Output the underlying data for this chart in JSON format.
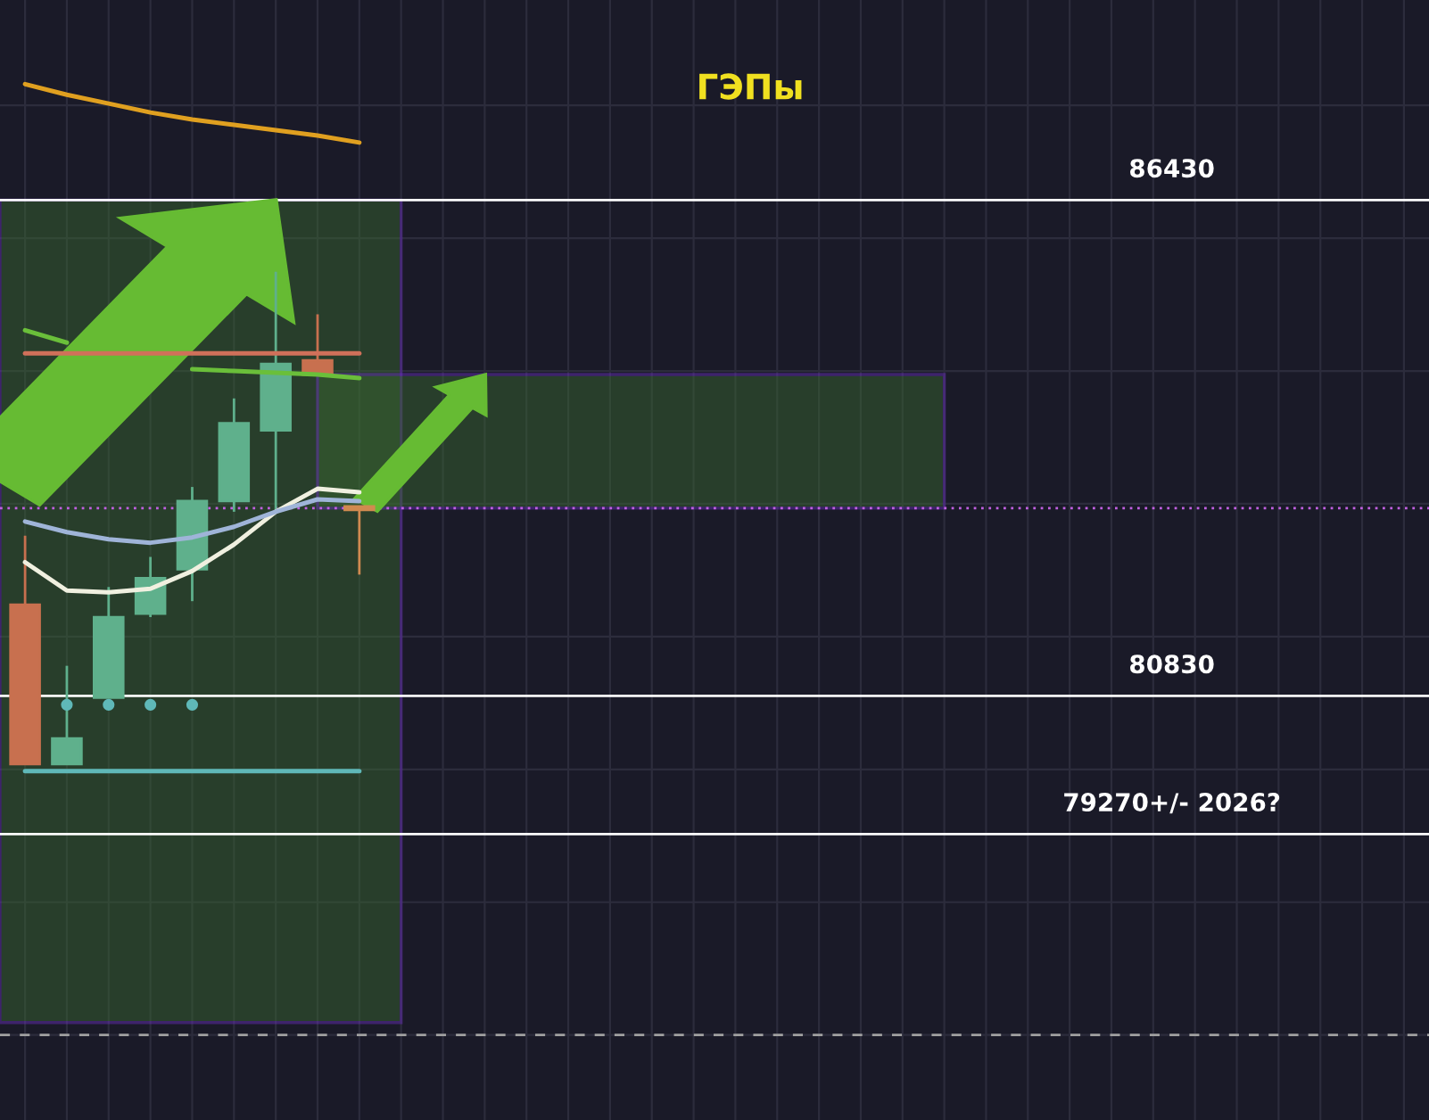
{
  "chart_data": {
    "type": "candlestick",
    "title": "ГЭПы",
    "categories": [
      null,
      null,
      null,
      null,
      null,
      null,
      null,
      null,
      null,
      null,
      null,
      null,
      null,
      null,
      null,
      null,
      null,
      null,
      null,
      null,
      null,
      null,
      null,
      null,
      null,
      null,
      null,
      null,
      null,
      null,
      null,
      null,
      null,
      null
    ],
    "ohlc": [
      [
        81860,
        82640,
        80060,
        80060
      ],
      [
        80060,
        81170,
        80060,
        80350
      ],
      [
        80810,
        82060,
        80810,
        81720
      ],
      [
        81760,
        82400,
        81720,
        82160
      ],
      [
        82260,
        83190,
        81900,
        83030
      ],
      [
        83030,
        84190,
        82910,
        83910
      ],
      [
        83830,
        85620,
        82910,
        84580
      ],
      [
        84620,
        85140,
        84460,
        84460
      ],
      [
        82970,
        82970,
        82200,
        82930
      ],
      null,
      null,
      null,
      null,
      null,
      null,
      null,
      null,
      null,
      null,
      null,
      null,
      null,
      null,
      null,
      null,
      null,
      null,
      null,
      null,
      null,
      null,
      null,
      null,
      null
    ],
    "colors": [
      "#c8704f",
      "#5fb08c",
      "#5fb08c",
      "#5fb08c",
      "#5fb08c",
      "#5fb08c",
      "#5fb08c",
      "#c8704f",
      "#d08a50",
      null,
      null,
      null,
      null,
      null,
      null,
      null,
      null,
      null,
      null,
      null,
      null,
      null,
      null,
      null,
      null,
      null,
      null,
      null,
      null,
      null,
      null,
      null,
      null,
      null
    ],
    "series": [
      {
        "type": "line",
        "color": "#f0f0e0",
        "values": [
          82340,
          82020,
          82000,
          82040,
          82240,
          82540,
          82910,
          83170,
          83130,
          null,
          null,
          null,
          null,
          null,
          null,
          null,
          null,
          null,
          null,
          null,
          null,
          null,
          null,
          null,
          null,
          null,
          null,
          null,
          null,
          null,
          null,
          null,
          null,
          null
        ]
      },
      {
        "type": "line",
        "color": "#9fb4d8",
        "values": [
          82800,
          82680,
          82600,
          82560,
          82620,
          82740,
          82910,
          83050,
          83030,
          null,
          null,
          null,
          null,
          null,
          null,
          null,
          null,
          null,
          null,
          null,
          null,
          null,
          null,
          null,
          null,
          null,
          null,
          null,
          null,
          null,
          null,
          null,
          null,
          null
        ]
      },
      {
        "type": "line",
        "color": "#e0a020",
        "values": [
          87740,
          87620,
          87520,
          87420,
          87340,
          87280,
          87220,
          87160,
          87080,
          null,
          null,
          null,
          null,
          null,
          null,
          null,
          null,
          null,
          null,
          null,
          null,
          null,
          null,
          null,
          null,
          null,
          null,
          null,
          null,
          null,
          null,
          null,
          null,
          null
        ]
      },
      {
        "type": "line",
        "color": "#6abf3a",
        "values": [
          84960,
          84820,
          null,
          null,
          84520,
          84500,
          84480,
          84460,
          84420,
          null,
          null,
          null,
          null,
          null,
          null,
          null,
          null,
          null,
          null,
          null,
          null,
          null,
          null,
          null,
          null,
          null,
          null,
          null,
          null,
          null,
          null,
          null,
          null,
          null
        ]
      },
      {
        "type": "line",
        "color": "#d0705a",
        "values": [
          84700,
          84700,
          84700,
          84700,
          84700,
          84700,
          84700,
          84700,
          84700,
          null,
          null,
          null,
          null,
          null,
          null,
          null,
          null,
          null,
          null,
          null,
          null,
          null,
          null,
          null,
          null,
          null,
          null,
          null,
          null,
          null,
          null,
          null,
          null,
          null
        ]
      },
      {
        "type": "line",
        "color": "#5fb8b8",
        "values": [
          79980,
          79980,
          79980,
          79980,
          79980,
          79980,
          79980,
          79980,
          79980,
          null,
          null,
          null,
          null,
          null,
          null,
          null,
          null,
          null,
          null,
          null,
          null,
          null,
          null,
          null,
          null,
          null,
          null,
          null,
          null,
          null,
          null,
          null,
          null,
          null
        ]
      },
      {
        "type": "scatter",
        "color": "#5fb8b8",
        "values": [
          null,
          80730,
          80730,
          80730,
          80730,
          null,
          null,
          null,
          null,
          null,
          null,
          null,
          null,
          null,
          null,
          null,
          null,
          null,
          null,
          null,
          null,
          null,
          null,
          null,
          null,
          null,
          null,
          null,
          null,
          null,
          null,
          null,
          null,
          null
        ]
      }
    ],
    "ylim": [
      76040,
      88690
    ],
    "yticks": [
      {
        "value": 77000,
        "label": null
      },
      {
        "value": 78500,
        "label": null
      },
      {
        "value": 80000,
        "label": null
      },
      {
        "value": 81500,
        "label": null
      },
      {
        "value": 83000,
        "label": null
      },
      {
        "value": 84500,
        "label": null
      },
      {
        "value": 86000,
        "label": null
      },
      {
        "value": 87500,
        "label": null
      }
    ],
    "grid": true,
    "ref_lines": [
      {
        "axis": "y",
        "value": 86430,
        "label": "86430",
        "color": "#ffffff",
        "line_style": "solid"
      },
      {
        "axis": "y",
        "value": 80830,
        "label": "80830",
        "color": "#ffffff",
        "line_style": "solid"
      },
      {
        "axis": "y",
        "value": 79270,
        "label": "79270+/- 2026?",
        "color": "#ffffff",
        "line_style": "solid"
      },
      {
        "axis": "y",
        "value": 82950,
        "color": "#c060e0",
        "line_style": "dotted"
      },
      {
        "axis": "y",
        "value": 77000,
        "color": "#a0a0a0",
        "line_style": "dashed"
      }
    ]
  }
}
